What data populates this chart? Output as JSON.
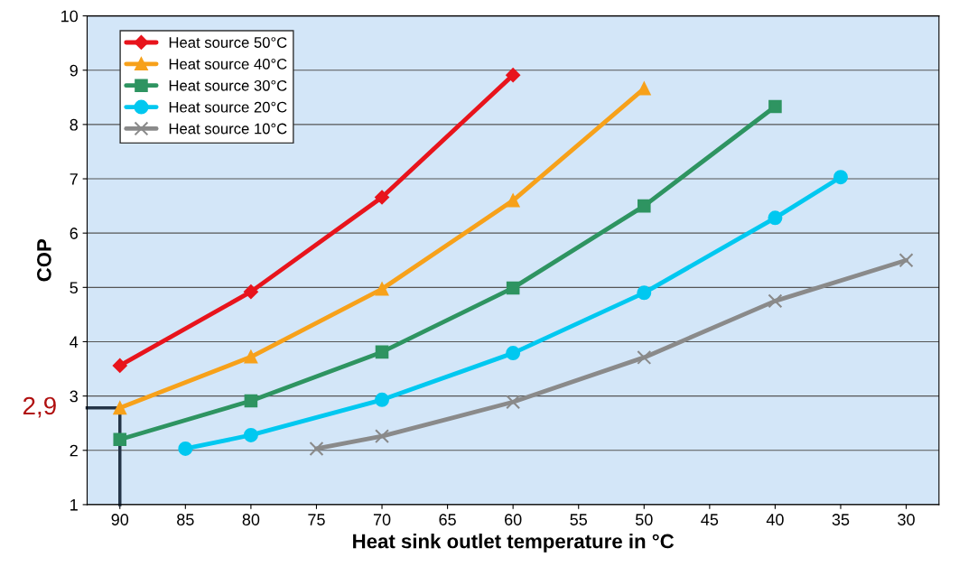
{
  "chart_data": {
    "type": "line",
    "xlabel": "Heat sink outlet temperature in °C",
    "ylabel": "COP",
    "xlim": [
      92.5,
      27.5
    ],
    "xticks": [
      90,
      85,
      80,
      75,
      70,
      65,
      60,
      55,
      50,
      45,
      40,
      35,
      30
    ],
    "ylim": [
      1,
      10
    ],
    "yticks": [
      1,
      2,
      3,
      4,
      5,
      6,
      7,
      8,
      9,
      10
    ],
    "grid": "y",
    "legend": "top left",
    "series": [
      {
        "name": "Heat source 50°C",
        "color": "#e8141c",
        "marker": "diamond",
        "x": [
          90,
          80,
          70,
          60
        ],
        "values": [
          3.56,
          4.92,
          6.66,
          8.91
        ]
      },
      {
        "name": "Heat source 40°C",
        "color": "#f7a11a",
        "marker": "triangle",
        "x": [
          90,
          80,
          70,
          60,
          50
        ],
        "values": [
          2.78,
          3.72,
          4.97,
          6.6,
          8.66
        ]
      },
      {
        "name": "Heat source 30°C",
        "color": "#2e9461",
        "marker": "square",
        "x": [
          90,
          80,
          70,
          60,
          50,
          40
        ],
        "values": [
          2.2,
          2.91,
          3.81,
          4.99,
          6.5,
          8.33
        ]
      },
      {
        "name": "Heat source 20°C",
        "color": "#00c8f0",
        "marker": "circle",
        "x": [
          85,
          80,
          70,
          60,
          50,
          40,
          35
        ],
        "values": [
          2.03,
          2.28,
          2.93,
          3.79,
          4.9,
          6.28,
          7.03
        ]
      },
      {
        "name": "Heat source 10°C",
        "color": "#8a8a8a",
        "marker": "cross",
        "x": [
          75,
          70,
          60,
          50,
          40,
          30
        ],
        "values": [
          2.03,
          2.26,
          2.89,
          3.71,
          4.75,
          5.5
        ]
      }
    ],
    "annotations": [
      {
        "text": "2,9",
        "x": 90,
        "y": 2.78
      }
    ]
  }
}
